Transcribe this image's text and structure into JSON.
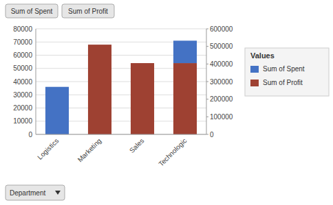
{
  "chart_data": {
    "type": "bar",
    "stacked": true,
    "categories": [
      "Logistics",
      "Marketing",
      "Sales",
      "Technologic"
    ],
    "series": [
      {
        "name": "Sum of Spent",
        "color": "#4472C4",
        "values": [
          36000,
          0,
          0,
          17000
        ]
      },
      {
        "name": "Sum of Profit",
        "color": "#9E4132",
        "values": [
          0,
          68000,
          54000,
          54000
        ]
      }
    ],
    "ylim": [
      0,
      80000
    ],
    "yticks": [
      0,
      10000,
      20000,
      30000,
      40000,
      50000,
      60000,
      70000,
      80000
    ],
    "y2lim": [
      0,
      600000
    ],
    "y2ticks": [
      0,
      100000,
      200000,
      300000,
      400000,
      500000,
      600000
    ],
    "xlabel": "Department",
    "annotations": [
      "Sum of Spent",
      "Sum of Profit",
      "Values"
    ],
    "grid": true,
    "legend": "right"
  }
}
